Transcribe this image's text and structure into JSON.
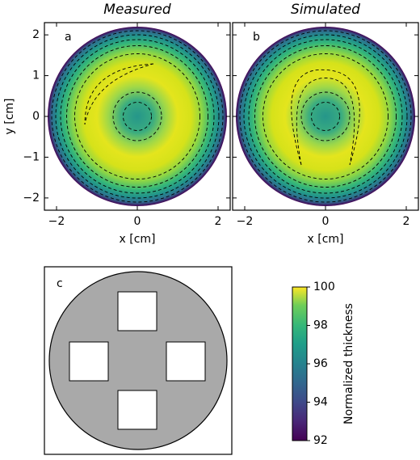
{
  "chart_data": [
    {
      "type": "heatmap",
      "title": "Measured",
      "panel_label": "a",
      "x_label": "x [cm]",
      "y_label": "y [cm]",
      "xlim": [
        -2.3,
        2.3
      ],
      "ylim": [
        -2.3,
        2.3
      ],
      "xticks": [
        {
          "value": -2,
          "label": "−2"
        },
        0,
        2
      ],
      "yticks": [
        {
          "value": -2,
          "label": "−2"
        },
        {
          "value": -1,
          "label": "−1"
        },
        0,
        1,
        2
      ]
    },
    {
      "type": "heatmap",
      "title": "Simulated",
      "panel_label": "b",
      "x_label": "x [cm]",
      "xlim": [
        -2.3,
        2.3
      ],
      "ylim": [
        -2.3,
        2.3
      ],
      "xticks": [
        {
          "value": -2,
          "label": "−2"
        },
        0,
        2
      ]
    },
    {
      "type": "colorbar",
      "label": "Normalized thickness",
      "lim": [
        92,
        100
      ],
      "ticks": [
        92,
        94,
        96,
        98,
        100
      ]
    }
  ],
  "diagram": {
    "panel_label": "c"
  }
}
